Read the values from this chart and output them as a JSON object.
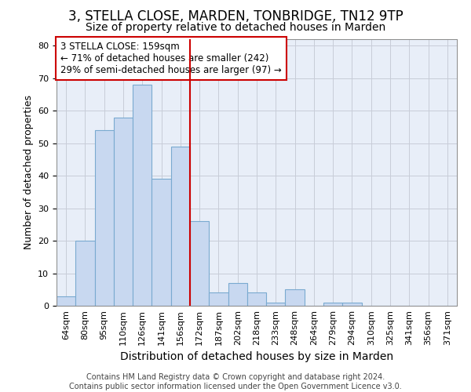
{
  "title1": "3, STELLA CLOSE, MARDEN, TONBRIDGE, TN12 9TP",
  "title2": "Size of property relative to detached houses in Marden",
  "xlabel": "Distribution of detached houses by size in Marden",
  "ylabel": "Number of detached properties",
  "categories": [
    "64sqm",
    "80sqm",
    "95sqm",
    "110sqm",
    "126sqm",
    "141sqm",
    "156sqm",
    "172sqm",
    "187sqm",
    "202sqm",
    "218sqm",
    "233sqm",
    "248sqm",
    "264sqm",
    "279sqm",
    "294sqm",
    "310sqm",
    "325sqm",
    "341sqm",
    "356sqm",
    "371sqm"
  ],
  "values": [
    3,
    20,
    54,
    58,
    68,
    39,
    49,
    26,
    4,
    7,
    4,
    1,
    5,
    0,
    1,
    1,
    0,
    0,
    0,
    0,
    0
  ],
  "bar_color": "#c8d8f0",
  "bar_edgecolor": "#7aaad0",
  "vline_x_index": 6,
  "vline_color": "#cc0000",
  "annotation_line1": "3 STELLA CLOSE: 159sqm",
  "annotation_line2": "← 71% of detached houses are smaller (242)",
  "annotation_line3": "29% of semi-detached houses are larger (97) →",
  "annotation_box_color": "#ffffff",
  "annotation_box_edgecolor": "#cc0000",
  "ylim": [
    0,
    82
  ],
  "yticks": [
    0,
    10,
    20,
    30,
    40,
    50,
    60,
    70,
    80
  ],
  "footer_line1": "Contains HM Land Registry data © Crown copyright and database right 2024.",
  "footer_line2": "Contains public sector information licensed under the Open Government Licence v3.0.",
  "background_color": "#e8eef8",
  "grid_color": "#c8ccd8",
  "title1_fontsize": 12,
  "title2_fontsize": 10,
  "xlabel_fontsize": 10,
  "ylabel_fontsize": 9,
  "tick_fontsize": 8,
  "footer_fontsize": 7
}
